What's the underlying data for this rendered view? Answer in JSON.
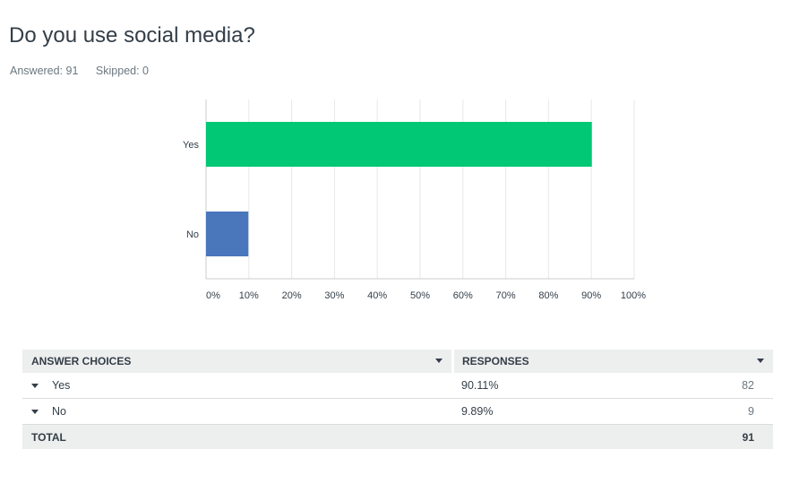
{
  "question": {
    "title": "Do you use social media?",
    "answered": "Answered: 91",
    "skipped": "Skipped: 0"
  },
  "chart_data": {
    "type": "bar",
    "orientation": "horizontal",
    "categories": [
      "Yes",
      "No"
    ],
    "values": [
      90.11,
      9.89
    ],
    "colors": [
      "#00c875",
      "#4a76bb"
    ],
    "xlim": [
      0,
      100
    ],
    "x_ticks": [
      "0%",
      "10%",
      "20%",
      "30%",
      "40%",
      "50%",
      "60%",
      "70%",
      "80%",
      "90%",
      "100%"
    ],
    "grid": true
  },
  "table": {
    "headers": [
      "ANSWER CHOICES",
      "RESPONSES"
    ],
    "rows": [
      {
        "choice": "Yes",
        "percent": "90.11%",
        "count": "82"
      },
      {
        "choice": "No",
        "percent": "9.89%",
        "count": "9"
      }
    ],
    "total_label": "TOTAL",
    "total_value": "91"
  }
}
